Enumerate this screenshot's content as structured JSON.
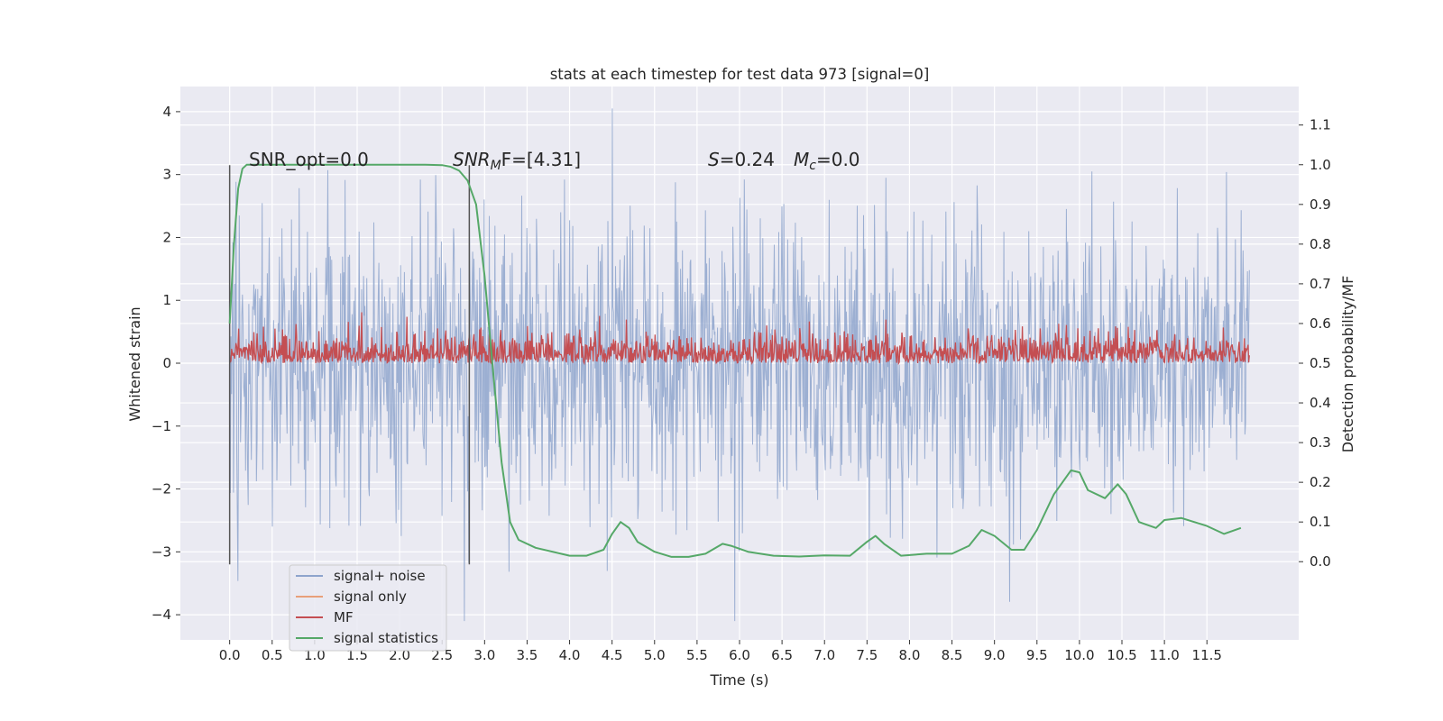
{
  "chart_data": {
    "type": "line",
    "title": "stats at each timestep for test data 973 [signal=0]",
    "xlabel": "Time (s)",
    "ylabel": "Whitened strain",
    "ylabel_right": "Detection probability/MF",
    "xlim": [
      -0.58,
      12.58
    ],
    "ylim": [
      -4.4,
      4.4
    ],
    "ylim_right": [
      -0.197,
      1.197
    ],
    "xticks": [
      "0.0",
      "0.5",
      "1.0",
      "1.5",
      "2.0",
      "2.5",
      "3.0",
      "3.5",
      "4.0",
      "4.5",
      "5.0",
      "5.5",
      "6.0",
      "6.5",
      "7.0",
      "7.5",
      "8.0",
      "8.5",
      "9.0",
      "9.5",
      "10.0",
      "10.5",
      "11.0",
      "11.5"
    ],
    "yticks": [
      "4",
      "3",
      "2",
      "1",
      "0",
      "−1",
      "−2",
      "−3",
      "−4"
    ],
    "yticks_right": [
      "1.1",
      "1.0",
      "0.9",
      "0.8",
      "0.7",
      "0.6",
      "0.5",
      "0.4",
      "0.3",
      "0.2",
      "0.1",
      "0.0"
    ],
    "grid": true,
    "legend_position": "lower-left",
    "annotations": {
      "snr_opt": "SNR_opt=0.0",
      "snr_mf_main": "SNR",
      "snr_mf_sub": "M",
      "snr_mf_tail": "F=[4.31]",
      "s_main": "S",
      "s_value": "=0.24",
      "mc_main": "M",
      "mc_sub": "c",
      "mc_value": "=0.0"
    },
    "vlines": [
      0.0,
      2.82
    ],
    "series": [
      {
        "name": "signal+ noise",
        "color": "#8ea4cc",
        "axis": "left",
        "t_range": [
          0.0,
          12.0
        ],
        "amplitude_range": [
          -4.1,
          4.05
        ]
      },
      {
        "name": "signal only",
        "color": "#e8a07a",
        "axis": "left",
        "values": [
          0,
          0
        ]
      },
      {
        "name": "MF",
        "color": "#c44e52",
        "axis": "right",
        "t_range": [
          0.0,
          12.0
        ],
        "value_range": [
          0.5,
          0.67
        ]
      },
      {
        "name": "signal statistics",
        "color": "#55a868",
        "axis": "right",
        "x": [
          0.0,
          0.05,
          0.1,
          0.15,
          0.2,
          0.3,
          0.5,
          1.0,
          1.5,
          2.0,
          2.3,
          2.5,
          2.6,
          2.7,
          2.8,
          2.9,
          3.0,
          3.1,
          3.2,
          3.3,
          3.4,
          3.6,
          4.0,
          4.2,
          4.4,
          4.5,
          4.6,
          4.7,
          4.8,
          5.0,
          5.2,
          5.4,
          5.6,
          5.8,
          5.9,
          6.1,
          6.4,
          6.7,
          7.0,
          7.3,
          7.5,
          7.6,
          7.7,
          7.9,
          8.2,
          8.5,
          8.7,
          8.85,
          9.0,
          9.2,
          9.35,
          9.5,
          9.7,
          9.9,
          10.0,
          10.1,
          10.3,
          10.45,
          10.55,
          10.7,
          10.9,
          11.0,
          11.2,
          11.5,
          11.7,
          11.9
        ],
        "values": [
          0.6,
          0.8,
          0.94,
          0.99,
          1.0,
          1.0,
          1.0,
          1.0,
          1.0,
          1.0,
          1.0,
          0.999,
          0.995,
          0.985,
          0.96,
          0.9,
          0.72,
          0.48,
          0.25,
          0.1,
          0.055,
          0.035,
          0.015,
          0.015,
          0.03,
          0.07,
          0.1,
          0.085,
          0.05,
          0.025,
          0.012,
          0.012,
          0.02,
          0.045,
          0.04,
          0.025,
          0.015,
          0.013,
          0.016,
          0.015,
          0.05,
          0.065,
          0.045,
          0.015,
          0.02,
          0.02,
          0.04,
          0.08,
          0.065,
          0.03,
          0.03,
          0.08,
          0.17,
          0.23,
          0.225,
          0.18,
          0.16,
          0.195,
          0.17,
          0.1,
          0.085,
          0.105,
          0.11,
          0.09,
          0.07,
          0.085
        ]
      }
    ]
  }
}
